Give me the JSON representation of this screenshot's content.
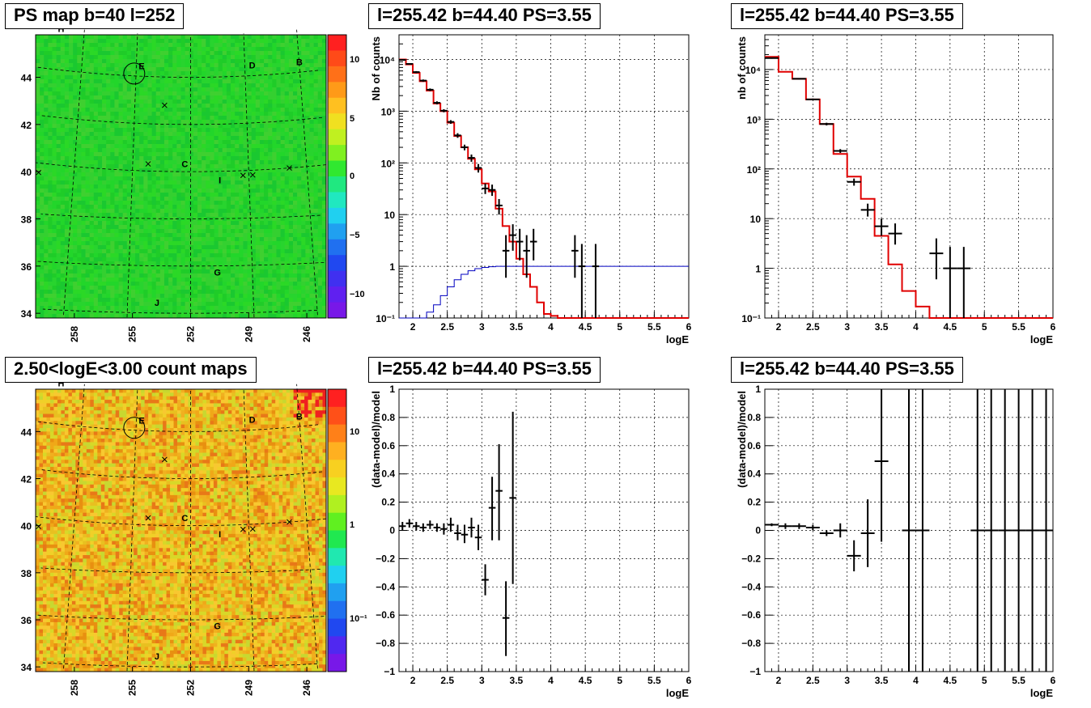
{
  "panels": [
    {
      "id": "map1",
      "type": "heatmap",
      "title": "PS map b=40 l=252",
      "x_ticks": [
        "258",
        "255",
        "252",
        "249",
        "246"
      ],
      "y_ticks": [
        "34",
        "36",
        "38",
        "40",
        "42",
        "44"
      ],
      "colorbar_ticks": [
        "10",
        "5",
        "0",
        "−5",
        "−10"
      ],
      "dominant_color": "#22d62a"
    },
    {
      "id": "spec1",
      "title": "l=255.42 b=44.40 PS=3.55"
    },
    {
      "id": "spec2",
      "title": "l=255.42 b=44.40 PS=3.55"
    },
    {
      "id": "map2",
      "type": "heatmap",
      "title": "2.50<logE<3.00 count maps",
      "x_ticks": [
        "258",
        "255",
        "252",
        "249",
        "246"
      ],
      "y_ticks": [
        "34",
        "36",
        "38",
        "40",
        "42",
        "44"
      ],
      "colorbar_ticks": [
        "10",
        "1",
        "10⁻¹"
      ],
      "dominant_color": "#e8c020"
    },
    {
      "id": "res1",
      "title": "l=255.42 b=44.40 PS=3.55"
    },
    {
      "id": "res2",
      "title": "l=255.42 b=44.40 PS=3.55"
    }
  ],
  "map_sources": [
    {
      "label": "H",
      "l": 259.3,
      "b": 45.6
    },
    {
      "label": "E",
      "l": 254.7,
      "b": 44.3
    },
    {
      "label": "D",
      "l": 248.6,
      "b": 44.3
    },
    {
      "label": "B",
      "l": 246.0,
      "b": 44.3
    },
    {
      "label": "C",
      "l": 252.3,
      "b": 40.2
    },
    {
      "label": "I",
      "l": 250.5,
      "b": 39.5
    },
    {
      "label": "G",
      "l": 250.7,
      "b": 35.6
    },
    {
      "label": "J",
      "l": 253.6,
      "b": 34.3
    }
  ],
  "map_markers": [
    {
      "l": 253.4,
      "b": 42.8
    },
    {
      "l": 254.2,
      "b": 40.3
    },
    {
      "l": 249.3,
      "b": 39.8
    },
    {
      "l": 248.8,
      "b": 39.8
    },
    {
      "l": 246.9,
      "b": 40.0
    },
    {
      "l": 259.8,
      "b": 39.6
    }
  ],
  "map_circle": {
    "l": 255.1,
    "b": 44.1
  },
  "chart_data": [
    {
      "type": "line",
      "panel": "spec1",
      "title": "l=255.42 b=44.40 PS=3.55",
      "xlabel": "logE",
      "ylabel": "Nb of counts",
      "xlim": [
        1.8,
        6
      ],
      "ylim": [
        0.1,
        30000
      ],
      "log_y": true,
      "grid": true,
      "x_ticks": [
        "2",
        "2.5",
        "3",
        "3.5",
        "4",
        "4.5",
        "5",
        "5.5",
        "6"
      ],
      "y_ticks": [
        {
          "label": "10⁻¹"
        },
        {
          "label": "1"
        },
        {
          "label": "10"
        },
        {
          "label": "10²"
        },
        {
          "label": "10³"
        },
        {
          "label": "10⁴"
        }
      ],
      "bin_width": 0.1,
      "model": {
        "color": "#e00000",
        "x": [
          1.8,
          1.9,
          2.0,
          2.1,
          2.2,
          2.3,
          2.4,
          2.5,
          2.6,
          2.7,
          2.8,
          2.9,
          3.0,
          3.1,
          3.2,
          3.3,
          3.4,
          3.5,
          3.6,
          3.7,
          3.8,
          3.9,
          4.0,
          4.1,
          4.2,
          4.3,
          4.4,
          4.5,
          4.6,
          4.7,
          4.8,
          4.9,
          5.0,
          5.1,
          5.2,
          5.3,
          5.4,
          5.5,
          5.6,
          5.7,
          5.8,
          5.9
        ],
        "values": [
          10000,
          8000,
          5500,
          3800,
          2500,
          1400,
          1000,
          600,
          330,
          200,
          120,
          75,
          40,
          28,
          13,
          6,
          3,
          1.4,
          0.7,
          0.4,
          0.2,
          0.12,
          0.11,
          0.1,
          0.1,
          0.1,
          0.1,
          0.1,
          0.1,
          0.1,
          0.1,
          0.1,
          0.1,
          0.1,
          0.1,
          0.1,
          0.1,
          0.1,
          0.1,
          0.1,
          0.1,
          0.1
        ]
      },
      "efficiency": {
        "color": "#0000c0",
        "x": [
          1.8,
          1.9,
          2.0,
          2.1,
          2.2,
          2.3,
          2.4,
          2.5,
          2.6,
          2.7,
          2.8,
          2.9,
          3.0,
          3.1,
          3.2,
          3.3,
          3.4,
          3.5,
          3.6,
          3.7,
          3.8,
          3.9,
          4.0,
          4.1,
          4.2,
          4.3,
          4.4,
          4.5,
          4.6,
          4.7,
          4.8,
          4.9,
          5.0,
          5.1,
          5.2,
          5.3,
          5.4,
          5.5,
          5.6,
          5.7,
          5.8,
          5.9
        ],
        "values": [
          0.1,
          0.1,
          0.1,
          0.1,
          0.13,
          0.18,
          0.27,
          0.4,
          0.55,
          0.7,
          0.82,
          0.9,
          0.95,
          0.98,
          1,
          1,
          1,
          1,
          1,
          1,
          1,
          1,
          1,
          1,
          1,
          1,
          1,
          1,
          1,
          1,
          1,
          1,
          1,
          1,
          1,
          1,
          1,
          1,
          1,
          1,
          1,
          1
        ]
      },
      "data_points": [
        {
          "x": 1.85,
          "y": 9800,
          "lo": 9500,
          "hi": 10100
        },
        {
          "x": 1.95,
          "y": 8200,
          "lo": 7900,
          "hi": 8500
        },
        {
          "x": 2.05,
          "y": 5700,
          "lo": 5450,
          "hi": 5950
        },
        {
          "x": 2.15,
          "y": 3900,
          "lo": 3700,
          "hi": 4100
        },
        {
          "x": 2.25,
          "y": 2600,
          "lo": 2450,
          "hi": 2750
        },
        {
          "x": 2.35,
          "y": 1450,
          "lo": 1350,
          "hi": 1550
        },
        {
          "x": 2.45,
          "y": 1020,
          "lo": 950,
          "hi": 1090
        },
        {
          "x": 2.55,
          "y": 620,
          "lo": 570,
          "hi": 670
        },
        {
          "x": 2.65,
          "y": 340,
          "lo": 305,
          "hi": 375
        },
        {
          "x": 2.75,
          "y": 200,
          "lo": 175,
          "hi": 225
        },
        {
          "x": 2.85,
          "y": 125,
          "lo": 105,
          "hi": 145
        },
        {
          "x": 2.95,
          "y": 80,
          "lo": 65,
          "hi": 95
        },
        {
          "x": 3.05,
          "y": 32,
          "lo": 25,
          "hi": 40
        },
        {
          "x": 3.15,
          "y": 30,
          "lo": 23,
          "hi": 38
        },
        {
          "x": 3.25,
          "y": 15,
          "lo": 10,
          "hi": 20
        },
        {
          "x": 3.35,
          "y": 2,
          "lo": 0.6,
          "hi": 4
        },
        {
          "x": 3.45,
          "y": 4,
          "lo": 2,
          "hi": 6.5
        },
        {
          "x": 3.55,
          "y": 3,
          "lo": 1.3,
          "hi": 5.3
        },
        {
          "x": 3.65,
          "y": 2,
          "lo": 0.6,
          "hi": 4
        },
        {
          "x": 3.75,
          "y": 3,
          "lo": 1.3,
          "hi": 5.3
        },
        {
          "x": 4.35,
          "y": 2,
          "lo": 0.6,
          "hi": 4
        },
        {
          "x": 4.45,
          "y": 1,
          "lo": 0.1,
          "hi": 2.7
        },
        {
          "x": 4.65,
          "y": 1,
          "lo": 0.1,
          "hi": 2.7
        }
      ]
    },
    {
      "type": "line",
      "panel": "spec2",
      "title": "l=255.42 b=44.40 PS=3.55",
      "xlabel": "logE",
      "ylabel": "nb of counts",
      "xlim": [
        1.8,
        6
      ],
      "ylim": [
        0.1,
        50000
      ],
      "log_y": true,
      "grid": true,
      "x_ticks": [
        "2",
        "2.5",
        "3",
        "3.5",
        "4",
        "4.5",
        "5",
        "5.5",
        "6"
      ],
      "y_ticks": [
        {
          "label": "10⁻¹"
        },
        {
          "label": "1"
        },
        {
          "label": "10"
        },
        {
          "label": "10²"
        },
        {
          "label": "10³"
        },
        {
          "label": "10⁴"
        }
      ],
      "bin_width": 0.2,
      "model": {
        "color": "#e00000",
        "x": [
          1.8,
          2.0,
          2.2,
          2.4,
          2.6,
          2.8,
          3.0,
          3.2,
          3.4,
          3.6,
          3.8,
          4.0,
          4.2,
          4.4,
          4.6,
          4.8,
          5.0,
          5.2,
          5.4,
          5.6,
          5.8
        ],
        "values": [
          18000,
          9000,
          6500,
          2500,
          800,
          200,
          70,
          25,
          4.5,
          1.2,
          0.35,
          0.17,
          0.1,
          0.1,
          0.1,
          0.1,
          0.1,
          0.1,
          0.1,
          0.1,
          0.1
        ]
      },
      "data_points": [
        {
          "x": 1.9,
          "y": 17000,
          "lo": 16500,
          "hi": 17500
        },
        {
          "x": 2.3,
          "y": 6500,
          "lo": 6300,
          "hi": 6700
        },
        {
          "x": 2.5,
          "y": 2500,
          "lo": 2400,
          "hi": 2600
        },
        {
          "x": 2.7,
          "y": 800,
          "lo": 750,
          "hi": 850
        },
        {
          "x": 2.9,
          "y": 230,
          "lo": 210,
          "hi": 250
        },
        {
          "x": 3.1,
          "y": 55,
          "lo": 46,
          "hi": 64
        },
        {
          "x": 3.3,
          "y": 15,
          "lo": 11,
          "hi": 20
        },
        {
          "x": 3.5,
          "y": 7,
          "lo": 4.5,
          "hi": 10
        },
        {
          "x": 3.7,
          "y": 5,
          "lo": 3,
          "hi": 8
        },
        {
          "x": 4.3,
          "y": 2,
          "lo": 0.6,
          "hi": 4
        },
        {
          "x": 4.5,
          "y": 1,
          "lo": 0.1,
          "hi": 2.7
        },
        {
          "x": 4.7,
          "y": 1,
          "lo": 0.1,
          "hi": 2.7
        }
      ]
    },
    {
      "type": "scatter",
      "panel": "res1",
      "title": "l=255.42 b=44.40 PS=3.55",
      "xlabel": "logE",
      "ylabel": "(data-model)/model",
      "xlim": [
        1.8,
        6
      ],
      "ylim": [
        -1,
        1
      ],
      "grid": true,
      "x_ticks": [
        "2",
        "2.5",
        "3",
        "3.5",
        "4",
        "4.5",
        "5",
        "5.5",
        "6"
      ],
      "y_ticks": [
        "1",
        "0.8",
        "0.6",
        "0.4",
        "0.2",
        "0",
        "−0.2",
        "−0.4",
        "−0.6",
        "−0.8",
        "−1"
      ],
      "bin_width": 0.1,
      "data_points": [
        {
          "x": 1.85,
          "y": 0.03,
          "lo": 0.0,
          "hi": 0.06
        },
        {
          "x": 1.95,
          "y": 0.05,
          "lo": 0.02,
          "hi": 0.08
        },
        {
          "x": 2.05,
          "y": 0.03,
          "lo": 0.0,
          "hi": 0.06
        },
        {
          "x": 2.15,
          "y": 0.02,
          "lo": -0.01,
          "hi": 0.05
        },
        {
          "x": 2.25,
          "y": 0.04,
          "lo": 0.01,
          "hi": 0.07
        },
        {
          "x": 2.35,
          "y": 0.02,
          "lo": -0.01,
          "hi": 0.05
        },
        {
          "x": 2.45,
          "y": 0.01,
          "lo": -0.03,
          "hi": 0.05
        },
        {
          "x": 2.55,
          "y": 0.04,
          "lo": -0.01,
          "hi": 0.09
        },
        {
          "x": 2.65,
          "y": -0.02,
          "lo": -0.07,
          "hi": 0.04
        },
        {
          "x": 2.75,
          "y": -0.03,
          "lo": -0.09,
          "hi": 0.04
        },
        {
          "x": 2.85,
          "y": 0.02,
          "lo": -0.05,
          "hi": 0.09
        },
        {
          "x": 2.95,
          "y": -0.05,
          "lo": -0.14,
          "hi": 0.04
        },
        {
          "x": 3.05,
          "y": -0.35,
          "lo": -0.46,
          "hi": -0.24
        },
        {
          "x": 3.15,
          "y": 0.16,
          "lo": -0.07,
          "hi": 0.38
        },
        {
          "x": 3.25,
          "y": 0.28,
          "lo": -0.07,
          "hi": 0.61
        },
        {
          "x": 3.35,
          "y": -0.62,
          "lo": -0.89,
          "hi": -0.36
        },
        {
          "x": 3.45,
          "y": 0.23,
          "lo": -0.38,
          "hi": 0.84
        }
      ]
    },
    {
      "type": "scatter",
      "panel": "res2",
      "title": "l=255.42 b=44.40 PS=3.55",
      "xlabel": "logE",
      "ylabel": "(data-model)/model",
      "xlim": [
        1.8,
        6
      ],
      "ylim": [
        -1,
        1
      ],
      "grid": true,
      "x_ticks": [
        "2",
        "2.5",
        "3",
        "3.5",
        "4",
        "4.5",
        "5",
        "5.5",
        "6"
      ],
      "y_ticks": [
        "1",
        "0.8",
        "0.6",
        "0.4",
        "0.2",
        "0",
        "−0.2",
        "−0.4",
        "−0.6",
        "−0.8",
        "−1"
      ],
      "bin_width": 0.2,
      "data_points": [
        {
          "x": 1.9,
          "y": 0.04,
          "lo": 0.03,
          "hi": 0.05
        },
        {
          "x": 2.1,
          "y": 0.03,
          "lo": 0.01,
          "hi": 0.05
        },
        {
          "x": 2.3,
          "y": 0.03,
          "lo": 0.01,
          "hi": 0.05
        },
        {
          "x": 2.5,
          "y": 0.02,
          "lo": 0.0,
          "hi": 0.04
        },
        {
          "x": 2.7,
          "y": -0.02,
          "lo": -0.04,
          "hi": 0.0
        },
        {
          "x": 2.9,
          "y": 0.0,
          "lo": -0.05,
          "hi": 0.05
        },
        {
          "x": 3.1,
          "y": -0.18,
          "lo": -0.29,
          "hi": -0.07
        },
        {
          "x": 3.3,
          "y": -0.02,
          "lo": -0.26,
          "hi": 0.22
        },
        {
          "x": 3.5,
          "y": 0.49,
          "lo": -0.08,
          "hi": 1.0
        },
        {
          "x": 3.9,
          "y": 0,
          "lo": -1,
          "hi": 1
        },
        {
          "x": 4.1,
          "y": 0,
          "lo": -1,
          "hi": 1
        },
        {
          "x": 4.9,
          "y": 0,
          "lo": -1,
          "hi": 1
        },
        {
          "x": 5.1,
          "y": 0,
          "lo": -1,
          "hi": 1
        },
        {
          "x": 5.3,
          "y": 0,
          "lo": -1,
          "hi": 1
        },
        {
          "x": 5.5,
          "y": 0,
          "lo": -1,
          "hi": 1
        },
        {
          "x": 5.7,
          "y": 0,
          "lo": -1,
          "hi": 1
        },
        {
          "x": 5.9,
          "y": 0,
          "lo": -1,
          "hi": 1
        }
      ]
    }
  ]
}
